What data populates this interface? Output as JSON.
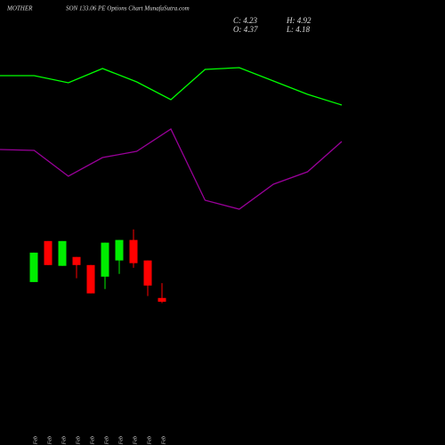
{
  "chart_data": [
    {
      "type": "candlestick",
      "title": [
        "MOTHER",
        "SON 133.06 PE Options Chart MunafaSutra.com"
      ],
      "ohlc_labels": [
        "C: 4.23",
        "H: 4.92",
        "O: 4.37",
        "L: 4.18"
      ],
      "categories": [
        "11 Feb",
        "12 Feb",
        "13 Feb",
        "17 Feb",
        "18 Feb",
        "19 Feb",
        "20 Feb",
        "21 Feb",
        "24 Feb",
        "27 Feb"
      ],
      "open": [
        4.96,
        6.48,
        5.56,
        5.89,
        5.59,
        5.16,
        5.76,
        6.52,
        5.76,
        4.37
      ],
      "high": [
        6.05,
        6.48,
        6.48,
        5.89,
        5.59,
        6.42,
        6.52,
        6.91,
        5.76,
        4.92
      ],
      "low": [
        4.96,
        5.59,
        5.56,
        5.1,
        4.54,
        4.7,
        5.26,
        5.49,
        4.44,
        4.18
      ],
      "close": [
        6.05,
        5.59,
        6.48,
        5.59,
        4.54,
        6.42,
        6.52,
        5.66,
        4.83,
        4.23
      ],
      "up_color": "#00ee00",
      "down_color": "#ff0000",
      "ylim": [
        4.0,
        7.2
      ]
    },
    {
      "type": "line",
      "series": [
        {
          "color": "#00ff00",
          "values": [
            415,
            415,
            407,
            423,
            408,
            388,
            422,
            424,
            409,
            394,
            382
          ]
        },
        {
          "color": "#990099",
          "values": [
            332,
            331,
            302,
            323,
            330,
            355,
            275,
            265,
            293,
            307,
            341
          ]
        }
      ],
      "ylim": [
        0,
        500
      ]
    }
  ]
}
